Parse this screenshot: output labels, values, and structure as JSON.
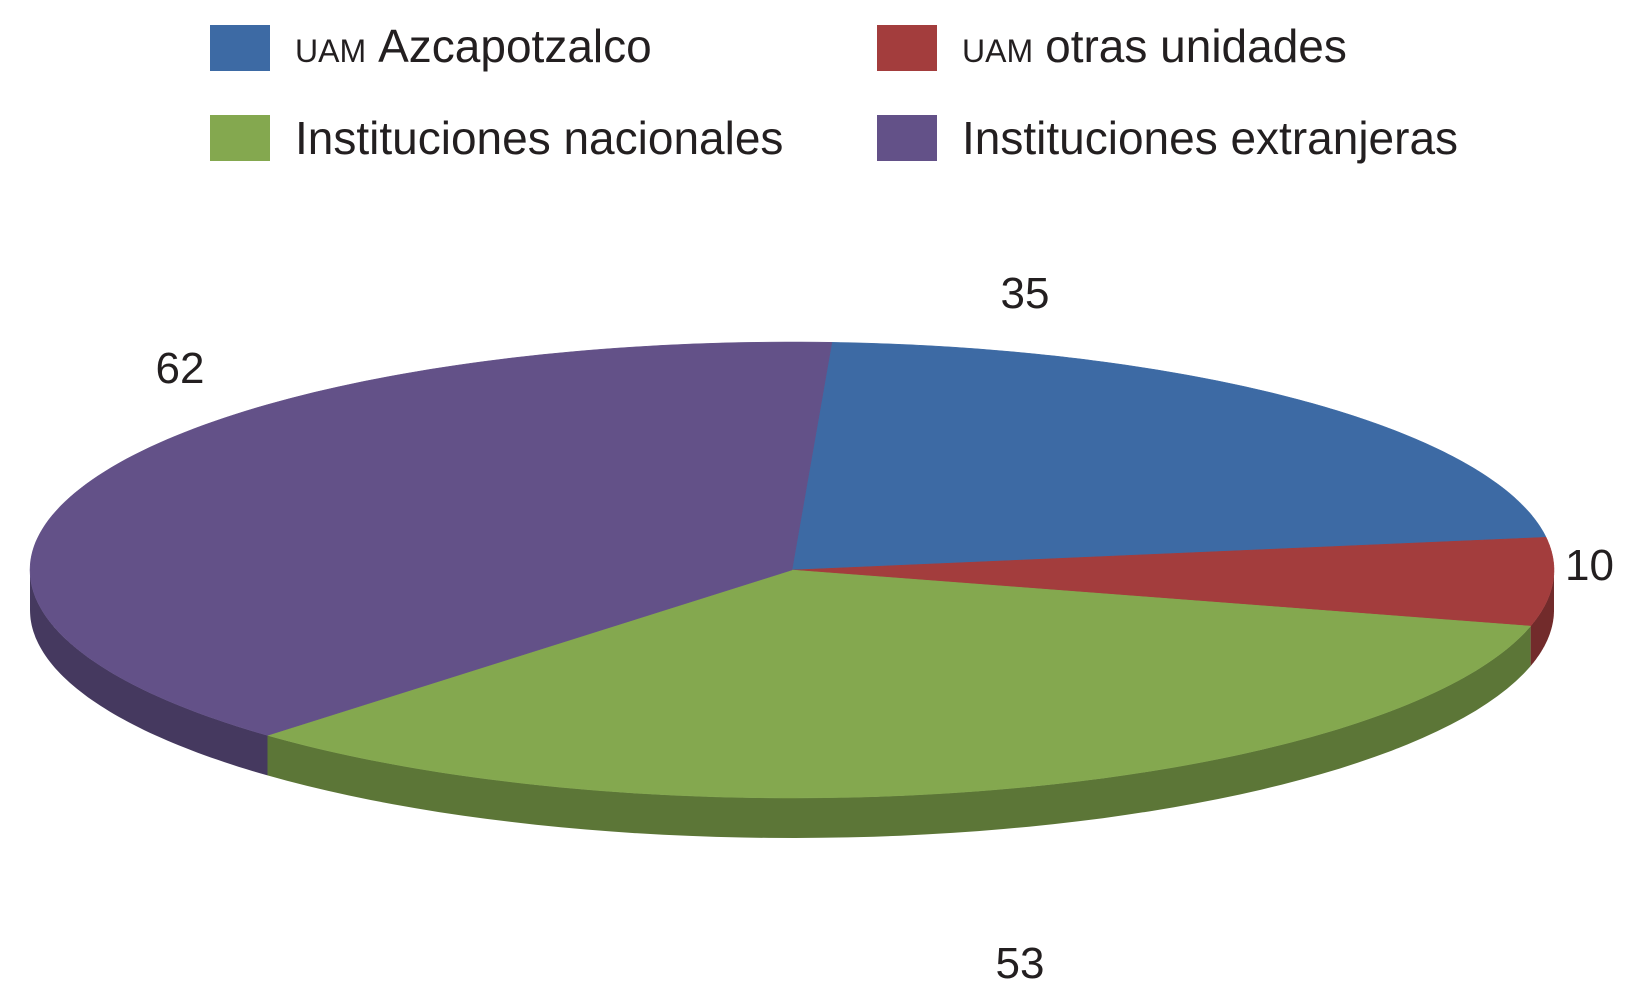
{
  "chart_data": {
    "type": "pie",
    "title": "",
    "series": [
      {
        "name": "Azcapotzalco",
        "prefix": "UAM",
        "value": 35,
        "color": "#3d6aa4"
      },
      {
        "name": "otras unidades",
        "prefix": "UAM",
        "value": 10,
        "color": "#a33d3d"
      },
      {
        "name": "Instituciones nacionales",
        "prefix": "",
        "value": 53,
        "color": "#84a84f"
      },
      {
        "name": "Instituciones extranjeras",
        "prefix": "",
        "value": 62,
        "color": "#635188"
      }
    ],
    "legend_position": "top",
    "style": "3d-tilted"
  }
}
